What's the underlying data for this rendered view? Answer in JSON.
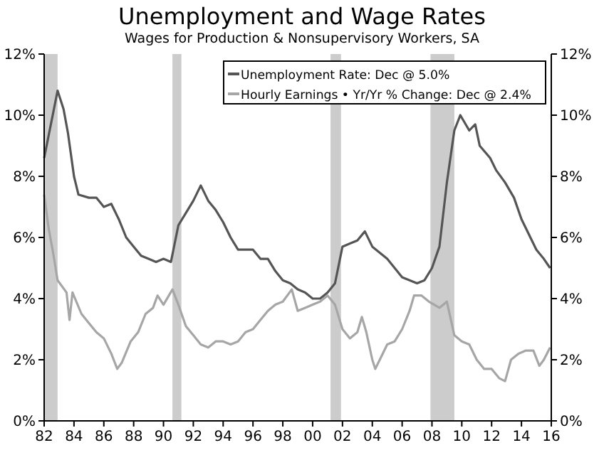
{
  "chart_data": {
    "type": "line",
    "title": "Unemployment and Wage Rates",
    "subtitle": "Wages for Production & Nonsupervisory Workers, SA",
    "xlim": [
      1982,
      2016
    ],
    "xticks": [
      {
        "value": 1982,
        "label": "82"
      },
      {
        "value": 1984,
        "label": "84"
      },
      {
        "value": 1986,
        "label": "86"
      },
      {
        "value": 1988,
        "label": "88"
      },
      {
        "value": 1990,
        "label": "90"
      },
      {
        "value": 1992,
        "label": "92"
      },
      {
        "value": 1994,
        "label": "94"
      },
      {
        "value": 1996,
        "label": "96"
      },
      {
        "value": 1998,
        "label": "98"
      },
      {
        "value": 2000,
        "label": "00"
      },
      {
        "value": 2002,
        "label": "02"
      },
      {
        "value": 2004,
        "label": "04"
      },
      {
        "value": 2006,
        "label": "06"
      },
      {
        "value": 2008,
        "label": "08"
      },
      {
        "value": 2010,
        "label": "10"
      },
      {
        "value": 2012,
        "label": "12"
      },
      {
        "value": 2014,
        "label": "14"
      },
      {
        "value": 2016,
        "label": "16"
      }
    ],
    "ylim": [
      0,
      12
    ],
    "yticks": [
      {
        "value": 0,
        "label": "0%"
      },
      {
        "value": 2,
        "label": "2%"
      },
      {
        "value": 4,
        "label": "4%"
      },
      {
        "value": 6,
        "label": "6%"
      },
      {
        "value": 8,
        "label": "8%"
      },
      {
        "value": 10,
        "label": "10%"
      },
      {
        "value": 12,
        "label": "12%"
      }
    ],
    "y2lim": [
      0,
      12
    ],
    "y2ticks": [
      {
        "value": 0,
        "label": "0%"
      },
      {
        "value": 2,
        "label": "2%"
      },
      {
        "value": 4,
        "label": "4%"
      },
      {
        "value": 6,
        "label": "6%"
      },
      {
        "value": 8,
        "label": "8%"
      },
      {
        "value": 10,
        "label": "10%"
      },
      {
        "value": 12,
        "label": "12%"
      }
    ],
    "grid": false,
    "legend": "top right",
    "line_style": "solid",
    "bands": [
      {
        "axis": "x",
        "from": 1982,
        "to": 1982.9,
        "color": "#cccccc"
      },
      {
        "axis": "x",
        "from": 1990.6,
        "to": 1991.2,
        "color": "#cccccc"
      },
      {
        "axis": "x",
        "from": 2001.2,
        "to": 2001.9,
        "color": "#cccccc"
      },
      {
        "axis": "x",
        "from": 2007.9,
        "to": 2009.5,
        "color": "#cccccc"
      }
    ],
    "series": [
      {
        "name": "Unemployment Rate: Dec @ 5.0%",
        "color": "#555555",
        "x": [
          1982,
          1982.9,
          1983.3,
          1983.6,
          1984,
          1984.3,
          1985,
          1985.5,
          1986,
          1986.5,
          1987,
          1987.5,
          1988,
          1988.5,
          1989,
          1989.5,
          1990,
          1990.5,
          1991,
          1991.5,
          1992,
          1992.5,
          1993,
          1993.5,
          1994,
          1994.5,
          1995,
          1995.5,
          1996,
          1996.5,
          1997,
          1997.5,
          1998,
          1998.5,
          1999,
          1999.5,
          2000,
          2000.5,
          2001,
          2001.5,
          2002,
          2002.5,
          2003,
          2003.5,
          2004,
          2004.5,
          2005,
          2005.5,
          2006,
          2006.5,
          2007,
          2007.5,
          2008,
          2008.5,
          2009,
          2009.5,
          2009.9,
          2010.5,
          2010.9,
          2011.2,
          2011.9,
          2012.3,
          2012.9,
          2013.5,
          2014,
          2014.5,
          2015,
          2015.5,
          2015.92
        ],
        "values": [
          8.6,
          10.8,
          10.2,
          9.4,
          8.0,
          7.4,
          7.3,
          7.3,
          7.0,
          7.1,
          6.6,
          6.0,
          5.7,
          5.4,
          5.3,
          5.2,
          5.3,
          5.2,
          6.4,
          6.8,
          7.2,
          7.7,
          7.2,
          6.9,
          6.5,
          6.0,
          5.6,
          5.6,
          5.6,
          5.3,
          5.3,
          4.9,
          4.6,
          4.5,
          4.3,
          4.2,
          4.0,
          4.0,
          4.2,
          4.5,
          5.7,
          5.8,
          5.9,
          6.2,
          5.7,
          5.5,
          5.3,
          5.0,
          4.7,
          4.6,
          4.5,
          4.6,
          5.0,
          5.7,
          7.8,
          9.5,
          10.0,
          9.5,
          9.7,
          9.0,
          8.6,
          8.2,
          7.8,
          7.3,
          6.6,
          6.1,
          5.6,
          5.3,
          5.0
        ]
      },
      {
        "name": "Hourly Earnings • Yr/Yr % Change: Dec @ 2.4%",
        "color": "#a6a6a6",
        "x": [
          1982,
          1982.3,
          1982.6,
          1982.9,
          1983.5,
          1983.7,
          1983.9,
          1984.5,
          1985,
          1985.5,
          1986,
          1986.5,
          1986.9,
          1987.2,
          1987.8,
          1988.3,
          1988.8,
          1989.3,
          1989.6,
          1990,
          1990.6,
          1991,
          1991.5,
          1992,
          1992.5,
          1993,
          1993.5,
          1994,
          1994.5,
          1995,
          1995.5,
          1996,
          1996.5,
          1997,
          1997.5,
          1998,
          1998.6,
          1999,
          1999.5,
          2000,
          2000.5,
          2001,
          2001.5,
          2002,
          2002.5,
          2003,
          2003.3,
          2003.6,
          2004,
          2004.2,
          2004.6,
          2005,
          2005.5,
          2006,
          2006.5,
          2006.8,
          2007.3,
          2007.8,
          2008.5,
          2009,
          2009.5,
          2010,
          2010.5,
          2011,
          2011.5,
          2012,
          2012.5,
          2012.9,
          2013.3,
          2013.8,
          2014.3,
          2014.8,
          2015.2,
          2015.5,
          2015.92
        ],
        "values": [
          7.4,
          6.3,
          5.5,
          4.6,
          4.2,
          3.3,
          4.2,
          3.5,
          3.2,
          2.9,
          2.7,
          2.2,
          1.7,
          1.9,
          2.6,
          2.9,
          3.5,
          3.7,
          4.1,
          3.8,
          4.3,
          3.8,
          3.1,
          2.8,
          2.5,
          2.4,
          2.6,
          2.6,
          2.5,
          2.6,
          2.9,
          3.0,
          3.3,
          3.6,
          3.8,
          3.9,
          4.3,
          3.6,
          3.7,
          3.8,
          3.9,
          4.1,
          3.8,
          3.0,
          2.7,
          2.9,
          3.4,
          2.9,
          2.0,
          1.7,
          2.1,
          2.5,
          2.6,
          3.0,
          3.6,
          4.1,
          4.1,
          3.9,
          3.7,
          3.9,
          2.8,
          2.6,
          2.5,
          2.0,
          1.7,
          1.7,
          1.4,
          1.3,
          2.0,
          2.2,
          2.3,
          2.3,
          1.8,
          2.0,
          2.4
        ]
      }
    ]
  }
}
